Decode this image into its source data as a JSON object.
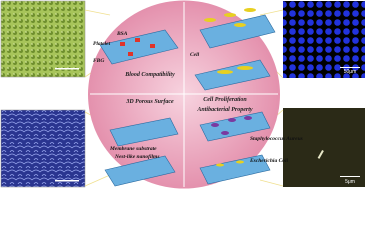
{
  "quadrants": [
    "Blood Compatibility",
    "Cell Proliferation",
    "3D Porous Surface",
    "Antibacterial Property"
  ],
  "labels": {
    "bsa": "BSA",
    "platelet": "Platelet",
    "fbg": "FBG",
    "cell": "Cell",
    "membrane": "Membrane substrate",
    "nanofilm": "Nest-like nanofilms",
    "staph": "Staphylococcus Aureus",
    "ecoli": "Escherichia Coli"
  },
  "scale_bars": [
    "50μm",
    "5μm"
  ]
}
